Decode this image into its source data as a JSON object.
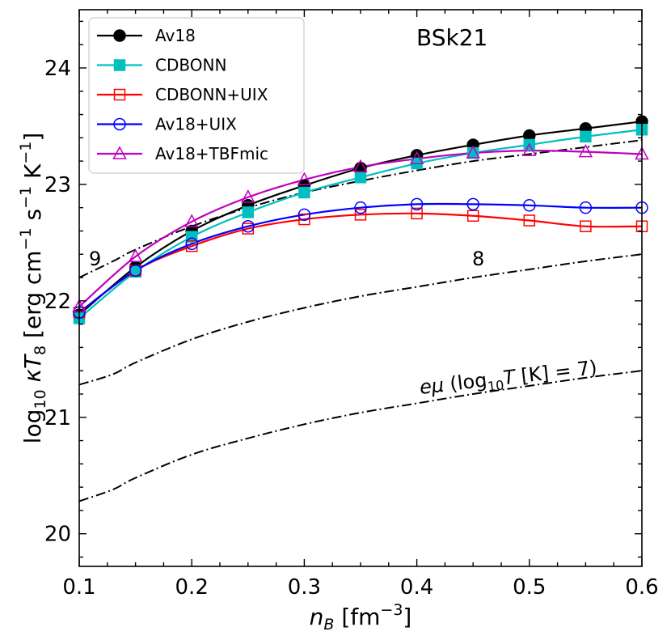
{
  "chart_data": {
    "type": "line",
    "title": "BSk21",
    "xlabel": {
      "base": "n",
      "sub": "B",
      "unit": "[fm",
      "sup": "−3",
      "close": "]"
    },
    "ylabel": {
      "pre": "log",
      "sub": "10",
      "mid": " κT",
      "sub2": "8",
      "unit": "  [erg cm",
      "s1": "−1",
      "u2": " s",
      "s2": "−1",
      "u3": " K",
      "s3": "−1",
      "close": "]"
    },
    "xlim": [
      0.1,
      0.6
    ],
    "ylim": [
      19.72,
      24.5
    ],
    "x_ticks": [
      "0.1",
      "0.2",
      "0.3",
      "0.4",
      "0.5",
      "0.6"
    ],
    "y_ticks": [
      "20",
      "21",
      "22",
      "23",
      "24"
    ],
    "legend_position": "top-left",
    "series": [
      {
        "name": "Av18",
        "color": "#000000",
        "marker": "filled-circle",
        "x": [
          0.1,
          0.15,
          0.2,
          0.25,
          0.3,
          0.35,
          0.4,
          0.45,
          0.5,
          0.55,
          0.6
        ],
        "y": [
          21.88,
          22.29,
          22.6,
          22.82,
          22.99,
          23.14,
          23.25,
          23.34,
          23.42,
          23.48,
          23.54
        ]
      },
      {
        "name": "CDBONN",
        "color": "#00bfbf",
        "marker": "filled-square",
        "x": [
          0.1,
          0.15,
          0.2,
          0.25,
          0.3,
          0.35,
          0.4,
          0.45,
          0.5,
          0.55,
          0.6
        ],
        "y": [
          21.85,
          22.25,
          22.55,
          22.76,
          22.93,
          23.06,
          23.18,
          23.27,
          23.34,
          23.41,
          23.47
        ]
      },
      {
        "name": "CDBONN+UIX",
        "color": "#ff0000",
        "marker": "open-square",
        "x": [
          0.1,
          0.15,
          0.2,
          0.25,
          0.3,
          0.35,
          0.4,
          0.45,
          0.5,
          0.55,
          0.6
        ],
        "y": [
          21.9,
          22.26,
          22.47,
          22.62,
          22.7,
          22.74,
          22.75,
          22.73,
          22.69,
          22.64,
          22.64
        ]
      },
      {
        "name": "Av18+UIX",
        "color": "#0000ff",
        "marker": "open-circle",
        "x": [
          0.1,
          0.15,
          0.2,
          0.25,
          0.3,
          0.35,
          0.4,
          0.45,
          0.5,
          0.55,
          0.6
        ],
        "y": [
          21.9,
          22.26,
          22.49,
          22.64,
          22.74,
          22.8,
          22.83,
          22.83,
          22.82,
          22.8,
          22.8
        ]
      },
      {
        "name": "Av18+TBFmic",
        "color": "#bf00bf",
        "marker": "open-triangle",
        "x": [
          0.1,
          0.15,
          0.2,
          0.25,
          0.3,
          0.35,
          0.4,
          0.45,
          0.5,
          0.55,
          0.6
        ],
        "y": [
          21.95,
          22.38,
          22.68,
          22.89,
          23.04,
          23.15,
          23.22,
          23.27,
          23.29,
          23.28,
          23.26
        ]
      }
    ],
    "reference_curves": [
      {
        "label": "9",
        "x": [
          0.1,
          0.13,
          0.15,
          0.2,
          0.25,
          0.3,
          0.35,
          0.4,
          0.45,
          0.5,
          0.55,
          0.6
        ],
        "y": [
          22.2,
          22.34,
          22.44,
          22.64,
          22.8,
          22.93,
          23.03,
          23.12,
          23.2,
          23.26,
          23.32,
          23.38
        ]
      },
      {
        "label": "8",
        "x": [
          0.1,
          0.13,
          0.15,
          0.2,
          0.25,
          0.3,
          0.35,
          0.4,
          0.45,
          0.5,
          0.55,
          0.6
        ],
        "y": [
          21.28,
          21.37,
          21.47,
          21.67,
          21.82,
          21.94,
          22.04,
          22.12,
          22.2,
          22.27,
          22.34,
          22.4
        ]
      },
      {
        "label": "eμ (log10T [K] = 7)",
        "x": [
          0.1,
          0.13,
          0.15,
          0.2,
          0.25,
          0.3,
          0.35,
          0.4,
          0.45,
          0.5,
          0.55,
          0.6
        ],
        "y": [
          20.28,
          20.38,
          20.48,
          20.68,
          20.82,
          20.94,
          21.04,
          21.12,
          21.2,
          21.27,
          21.34,
          21.4
        ]
      }
    ],
    "annotations": {
      "label9": "9",
      "label8": "8",
      "em_label": {
        "e": "e",
        "mu": "μ",
        "open": " (log",
        "sub": "10",
        "T": "T",
        "rest": " [K] = 7)"
      }
    }
  }
}
